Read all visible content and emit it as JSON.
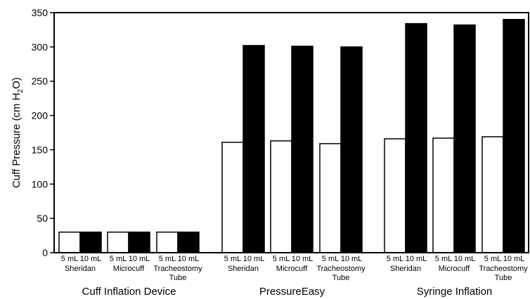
{
  "chart_data": {
    "type": "bar",
    "ylabel_parts": [
      "Cuff Pressure (cm H",
      "2",
      "O)"
    ],
    "ylim": [
      0,
      350
    ],
    "yticks": [
      "0",
      "50",
      "100",
      "150",
      "200",
      "250",
      "300",
      "350"
    ],
    "series": [
      {
        "name": "5 mL",
        "fill": "#ffffff"
      },
      {
        "name": "10 mL",
        "fill": "#000000"
      }
    ],
    "groups": [
      {
        "label": "Cuff Inflation Device",
        "categories": [
          {
            "label": [
              "Sheridan"
            ],
            "values": [
              30,
              30
            ]
          },
          {
            "label": [
              "Microcuff"
            ],
            "values": [
              30,
              30
            ]
          },
          {
            "label": [
              "Tracheostomy",
              "Tube"
            ],
            "values": [
              30,
              30
            ]
          }
        ]
      },
      {
        "label": "PressureEasy",
        "categories": [
          {
            "label": [
              "Sheridan"
            ],
            "values": [
              161,
              302
            ]
          },
          {
            "label": [
              "Microcuff"
            ],
            "values": [
              163,
              301
            ]
          },
          {
            "label": [
              "Tracheostomy",
              "Tube"
            ],
            "values": [
              159,
              300
            ]
          }
        ]
      },
      {
        "label": "Syringe Inflation",
        "categories": [
          {
            "label": [
              "Sheridan"
            ],
            "values": [
              166,
              334
            ]
          },
          {
            "label": [
              "Microcuff"
            ],
            "values": [
              167,
              332
            ]
          },
          {
            "label": [
              "Tracheostomy",
              "Tube"
            ],
            "values": [
              169,
              340
            ]
          }
        ]
      }
    ]
  }
}
